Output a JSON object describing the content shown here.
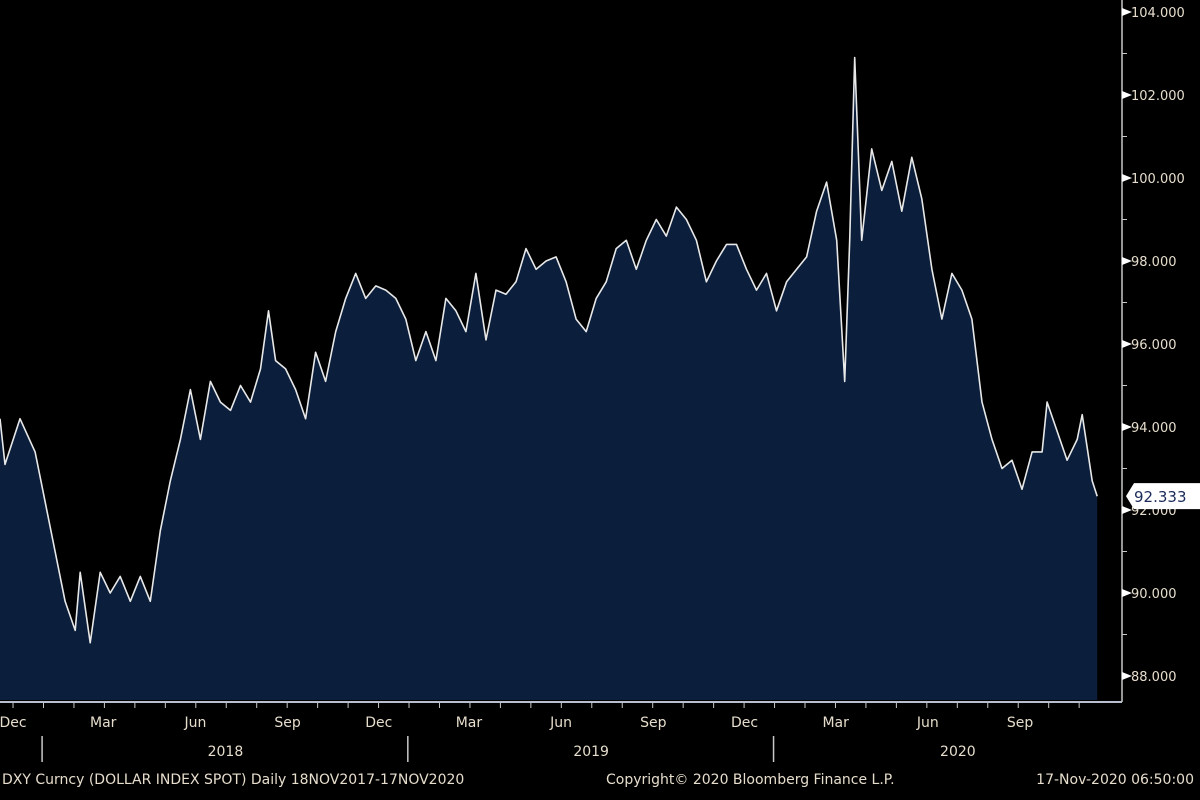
{
  "chart_data": {
    "type": "area",
    "title": "DXY Curncy (DOLLAR INDEX SPOT)",
    "frequency": "Daily",
    "range": "18NOV2017-17NOV2020",
    "xlabel": "",
    "ylabel": "",
    "x_unit": "days since 18-Nov-2017",
    "ylim": [
      87.0,
      104.3
    ],
    "y_ticks": [
      "104.000",
      "102.000",
      "100.000",
      "98.000",
      "96.000",
      "94.000",
      "92.000",
      "90.000",
      "88.000"
    ],
    "y_tick_values": [
      104,
      102,
      100,
      98,
      96,
      94,
      92,
      90,
      88
    ],
    "x_month_ticks": [
      {
        "label": "Dec",
        "day": 13
      },
      {
        "label": "Mar",
        "day": 103
      },
      {
        "label": "Jun",
        "day": 195
      },
      {
        "label": "Sep",
        "day": 287
      },
      {
        "label": "Dec",
        "day": 378
      },
      {
        "label": "Mar",
        "day": 468
      },
      {
        "label": "Jun",
        "day": 560
      },
      {
        "label": "Sep",
        "day": 652
      },
      {
        "label": "Dec",
        "day": 743
      },
      {
        "label": "Mar",
        "day": 834
      },
      {
        "label": "Jun",
        "day": 926
      },
      {
        "label": "Sep",
        "day": 1018
      }
    ],
    "x_year_labels": [
      {
        "label": "2018",
        "day": 210
      },
      {
        "label": "2019",
        "day": 575
      },
      {
        "label": "2020",
        "day": 941
      }
    ],
    "year_dividers": [
      44,
      409,
      774
    ],
    "last_value": "92.333",
    "grid": false,
    "series": [
      {
        "name": "DXY",
        "x": [
          0,
          5,
          20,
          35,
          45,
          55,
          65,
          75,
          80,
          90,
          100,
          110,
          120,
          130,
          140,
          150,
          160,
          170,
          180,
          190,
          200,
          210,
          220,
          230,
          240,
          250,
          260,
          268,
          275,
          285,
          295,
          305,
          315,
          325,
          335,
          345,
          355,
          365,
          375,
          385,
          395,
          405,
          415,
          425,
          435,
          445,
          455,
          465,
          475,
          485,
          495,
          505,
          515,
          525,
          535,
          545,
          555,
          565,
          575,
          585,
          595,
          605,
          615,
          625,
          635,
          645,
          655,
          665,
          675,
          685,
          695,
          705,
          715,
          725,
          735,
          745,
          755,
          765,
          775,
          785,
          795,
          805,
          815,
          825,
          835,
          843,
          848,
          853,
          860,
          870,
          880,
          890,
          900,
          910,
          920,
          930,
          940,
          950,
          960,
          970,
          980,
          990,
          1000,
          1010,
          1020,
          1030,
          1040,
          1045,
          1055,
          1065,
          1075,
          1080,
          1090,
          1095
        ],
        "values": [
          94.2,
          93.1,
          94.2,
          93.4,
          92.2,
          91.0,
          89.8,
          89.1,
          90.5,
          88.8,
          90.5,
          90.0,
          90.4,
          89.8,
          90.4,
          89.8,
          91.5,
          92.7,
          93.7,
          94.9,
          93.7,
          95.1,
          94.6,
          94.4,
          95.0,
          94.6,
          95.4,
          96.8,
          95.6,
          95.4,
          94.9,
          94.2,
          95.8,
          95.1,
          96.3,
          97.1,
          97.7,
          97.1,
          97.4,
          97.3,
          97.1,
          96.6,
          95.6,
          96.3,
          95.6,
          97.1,
          96.8,
          96.3,
          97.7,
          96.1,
          97.3,
          97.2,
          97.5,
          98.3,
          97.8,
          98.0,
          98.1,
          97.5,
          96.6,
          96.3,
          97.1,
          97.5,
          98.3,
          98.5,
          97.8,
          98.5,
          99.0,
          98.6,
          99.3,
          99.0,
          98.5,
          97.5,
          98.0,
          98.4,
          98.4,
          97.8,
          97.3,
          97.7,
          96.8,
          97.5,
          97.8,
          98.1,
          99.2,
          99.9,
          98.5,
          95.1,
          98.5,
          102.9,
          98.5,
          100.7,
          99.7,
          100.4,
          99.2,
          100.5,
          99.5,
          97.8,
          96.6,
          97.7,
          97.3,
          96.6,
          94.6,
          93.7,
          93.0,
          93.2,
          92.5,
          93.4,
          93.4,
          94.6,
          93.9,
          93.2,
          93.7,
          94.3,
          92.7,
          92.333
        ]
      }
    ]
  },
  "footer": {
    "left": "DXY Curncy (DOLLAR INDEX SPOT)  Daily 18NOV2017-17NOV2020",
    "center": "Copyright© 2020 Bloomberg Finance L.P.",
    "right": "17-Nov-2020 06:50:00"
  },
  "colors": {
    "fill": "#0b1f3c",
    "line": "#e8e8e8",
    "text": "#e6ddcc",
    "axis": "#c8c8c8"
  }
}
